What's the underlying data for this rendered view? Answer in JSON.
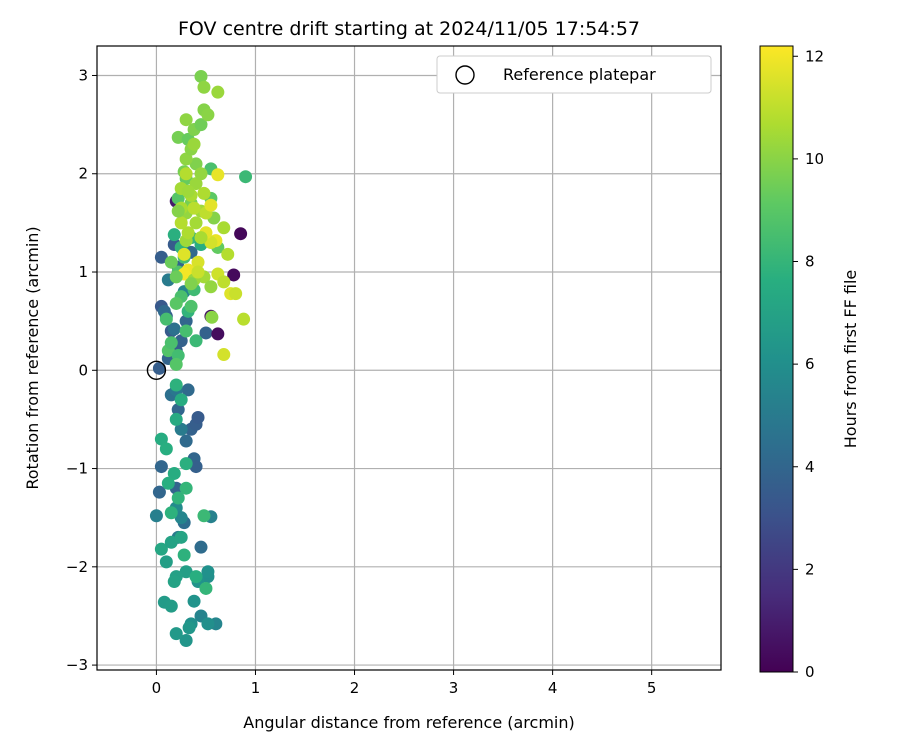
{
  "chart_data": {
    "type": "scatter",
    "title": "FOV centre drift starting at 2024/11/05 17:54:57",
    "xlabel": "Angular distance from reference (arcmin)",
    "ylabel": "Rotation from reference (arcmin)",
    "xlim": [
      -0.6,
      5.7
    ],
    "ylim": [
      -3.05,
      3.3
    ],
    "xticks": [
      0,
      1,
      2,
      3,
      4,
      5
    ],
    "xtick_labels": [
      "0",
      "1",
      "2",
      "3",
      "4",
      "5"
    ],
    "yticks": [
      -3,
      -2,
      -1,
      0,
      1,
      2,
      3
    ],
    "ytick_labels": [
      "−3",
      "−2",
      "−1",
      "0",
      "1",
      "2",
      "3"
    ],
    "grid": true,
    "legend": {
      "placement": "upper right",
      "entries": [
        "Reference platepar"
      ]
    },
    "reference_point": {
      "x": 0,
      "y": 0,
      "label": "Reference platepar"
    },
    "colorbar": {
      "label": "Hours from first FF file",
      "range": [
        0,
        12.2
      ],
      "ticks": [
        0,
        2,
        4,
        6,
        8,
        10,
        12
      ],
      "tick_labels": [
        "0",
        "2",
        "4",
        "6",
        "8",
        "10",
        "12"
      ],
      "colormap": "viridis"
    },
    "series": [
      {
        "name": "FOV centre drift",
        "points": [
          [
            0.03,
            0.02,
            3.6
          ],
          [
            0.05,
            0.65,
            3.4
          ],
          [
            0.1,
            0.55,
            3.7
          ],
          [
            0.15,
            0.4,
            3.5
          ],
          [
            0.2,
            0.2,
            3.6
          ],
          [
            0.25,
            0.3,
            3.8
          ],
          [
            0.3,
            0.5,
            4.0
          ],
          [
            0.12,
            0.12,
            3.9
          ],
          [
            0.05,
            1.15,
            3.6
          ],
          [
            0.18,
            1.28,
            3.5
          ],
          [
            0.22,
            1.05,
            3.9
          ],
          [
            0.35,
            1.2,
            4.2
          ],
          [
            0.5,
            0.38,
            3.8
          ],
          [
            0.55,
            0.55,
            0.6
          ],
          [
            0.62,
            0.37,
            0.4
          ],
          [
            0.78,
            0.97,
            0.3
          ],
          [
            0.85,
            1.39,
            0.2
          ],
          [
            0.2,
            1.72,
            0.9
          ],
          [
            0.28,
            0.8,
            5.5
          ],
          [
            0.32,
            -0.2,
            4.2
          ],
          [
            0.15,
            -0.25,
            4.5
          ],
          [
            0.22,
            -0.4,
            4.0
          ],
          [
            0.35,
            -0.6,
            3.8
          ],
          [
            0.4,
            -0.55,
            3.6
          ],
          [
            0.42,
            -0.48,
            3.5
          ],
          [
            0.3,
            -0.72,
            4.2
          ],
          [
            0.38,
            -0.9,
            4.0
          ],
          [
            0.4,
            -0.98,
            3.7
          ],
          [
            0.05,
            -0.98,
            4.0
          ],
          [
            0.2,
            -1.2,
            3.9
          ],
          [
            0.03,
            -1.24,
            4.0
          ],
          [
            0.2,
            -0.2,
            4.8
          ],
          [
            0.25,
            -0.6,
            5.0
          ],
          [
            0.08,
            0.6,
            4.2
          ],
          [
            0.12,
            0.92,
            5.0
          ],
          [
            0.18,
            0.42,
            4.5
          ],
          [
            0.45,
            -1.8,
            4.3
          ],
          [
            0.28,
            -1.55,
            4.4
          ],
          [
            0.22,
            -1.7,
            5.0
          ],
          [
            0.0,
            -1.48,
            5.2
          ],
          [
            0.2,
            -1.4,
            5.8
          ],
          [
            0.25,
            -1.5,
            5.5
          ],
          [
            0.55,
            -1.49,
            5.3
          ],
          [
            0.45,
            -2.5,
            5.4
          ],
          [
            0.6,
            -2.58,
            5.5
          ],
          [
            0.52,
            -2.58,
            6.0
          ],
          [
            0.35,
            -2.58,
            6.1
          ],
          [
            0.3,
            -2.75,
            6.3
          ],
          [
            0.2,
            -2.68,
            6.5
          ],
          [
            0.33,
            -2.62,
            6.4
          ],
          [
            0.08,
            -2.36,
            6.6
          ],
          [
            0.15,
            -2.4,
            6.7
          ],
          [
            0.38,
            -2.35,
            6.2
          ],
          [
            0.52,
            -2.1,
            6.0
          ],
          [
            0.52,
            -2.05,
            6.1
          ],
          [
            0.42,
            -2.15,
            6.2
          ],
          [
            0.3,
            -2.05,
            6.8
          ],
          [
            0.2,
            -2.1,
            6.9
          ],
          [
            0.18,
            -2.15,
            7.0
          ],
          [
            0.1,
            -1.95,
            6.8
          ],
          [
            0.05,
            -1.82,
            7.2
          ],
          [
            0.15,
            -1.75,
            7.0
          ],
          [
            0.25,
            -1.7,
            7.1
          ],
          [
            0.28,
            -1.88,
            7.8
          ],
          [
            0.05,
            -0.7,
            7.5
          ],
          [
            0.1,
            -0.8,
            7.6
          ],
          [
            0.2,
            -0.5,
            7.4
          ],
          [
            0.25,
            -0.3,
            7.5
          ],
          [
            0.2,
            -0.15,
            7.8
          ],
          [
            0.3,
            -0.95,
            7.7
          ],
          [
            0.18,
            -1.05,
            7.5
          ],
          [
            0.12,
            -1.15,
            7.6
          ],
          [
            0.22,
            -1.3,
            7.9
          ],
          [
            0.15,
            -1.45,
            7.8
          ],
          [
            0.3,
            -1.2,
            8.0
          ],
          [
            0.48,
            -1.48,
            8.2
          ],
          [
            0.5,
            -2.22,
            8.0
          ],
          [
            0.4,
            -2.1,
            7.6
          ],
          [
            0.1,
            0.52,
            8.5
          ],
          [
            0.12,
            0.2,
            8.8
          ],
          [
            0.15,
            0.28,
            8.6
          ],
          [
            0.22,
            0.15,
            8.4
          ],
          [
            0.2,
            0.06,
            8.9
          ],
          [
            0.3,
            0.4,
            8.5
          ],
          [
            0.32,
            0.6,
            7.9
          ],
          [
            0.38,
            0.82,
            8.3
          ],
          [
            0.4,
            0.3,
            8.2
          ],
          [
            0.25,
            0.75,
            8.6
          ],
          [
            0.22,
            1.0,
            8.8
          ],
          [
            0.28,
            1.15,
            8.5
          ],
          [
            0.18,
            1.38,
            7.7
          ],
          [
            0.35,
            1.35,
            8.1
          ],
          [
            0.25,
            1.25,
            7.9
          ],
          [
            0.45,
            1.28,
            7.6
          ],
          [
            0.22,
            2.37,
            9.6
          ],
          [
            0.32,
            2.35,
            9.3
          ],
          [
            0.38,
            2.45,
            9.8
          ],
          [
            0.45,
            2.5,
            9.5
          ],
          [
            0.48,
            2.65,
            9.9
          ],
          [
            0.52,
            2.6,
            10.0
          ],
          [
            0.45,
            2.99,
            9.7
          ],
          [
            0.48,
            2.88,
            10.1
          ],
          [
            0.62,
            2.83,
            10.3
          ],
          [
            0.3,
            2.55,
            10.1
          ],
          [
            0.28,
            2.02,
            9.6
          ],
          [
            0.3,
            1.95,
            9.3
          ],
          [
            0.4,
            2.1,
            9.8
          ],
          [
            0.55,
            2.05,
            8.6
          ],
          [
            0.9,
            1.97,
            8.2
          ],
          [
            0.22,
            1.75,
            8.9
          ],
          [
            0.35,
            1.7,
            9.6
          ],
          [
            0.45,
            1.62,
            10.4
          ],
          [
            0.55,
            1.75,
            9.1
          ],
          [
            0.58,
            1.55,
            9.9
          ],
          [
            0.62,
            1.25,
            9.2
          ],
          [
            0.68,
            1.45,
            10.6
          ],
          [
            0.72,
            1.18,
            10.8
          ],
          [
            0.6,
            1.32,
            11.8
          ],
          [
            0.55,
            1.3,
            11.4
          ],
          [
            0.5,
            1.4,
            11.7
          ],
          [
            0.32,
            1.02,
            11.9
          ],
          [
            0.42,
            1.1,
            11.5
          ],
          [
            0.48,
            0.95,
            10.5
          ],
          [
            0.55,
            0.85,
            10.2
          ],
          [
            0.62,
            0.98,
            11.3
          ],
          [
            0.68,
            0.9,
            11.0
          ],
          [
            0.75,
            0.78,
            11.6
          ],
          [
            0.8,
            0.78,
            11.2
          ],
          [
            0.88,
            0.52,
            10.9
          ],
          [
            0.56,
            0.54,
            10.0
          ],
          [
            0.68,
            0.16,
            11.4
          ],
          [
            0.28,
            1.18,
            11.6
          ],
          [
            0.28,
            0.98,
            12.0
          ],
          [
            0.38,
            0.92,
            10.3
          ],
          [
            0.2,
            0.95,
            9.4
          ],
          [
            0.3,
            1.32,
            10.4
          ],
          [
            0.62,
            1.99,
            11.8
          ],
          [
            0.5,
            1.6,
            11.0
          ],
          [
            0.3,
            1.6,
            10.2
          ],
          [
            0.35,
            1.78,
            10.6
          ],
          [
            0.25,
            1.85,
            10.5
          ],
          [
            0.4,
            1.9,
            10.3
          ],
          [
            0.45,
            2.0,
            10.2
          ],
          [
            0.3,
            2.15,
            10.1
          ],
          [
            0.35,
            2.25,
            10.0
          ],
          [
            0.38,
            2.3,
            10.3
          ],
          [
            0.32,
            1.4,
            10.7
          ],
          [
            0.4,
            1.5,
            10.5
          ],
          [
            0.25,
            1.5,
            10.8
          ],
          [
            0.45,
            1.35,
            10.6
          ],
          [
            0.2,
            0.68,
            9.0
          ],
          [
            0.35,
            0.65,
            8.7
          ],
          [
            0.15,
            1.1,
            9.4
          ],
          [
            0.32,
            1.82,
            10.4
          ],
          [
            0.48,
            1.8,
            10.7
          ],
          [
            0.55,
            1.68,
            11.7
          ],
          [
            0.42,
            1.0,
            11.2
          ],
          [
            0.25,
            1.65,
            10.6
          ],
          [
            0.3,
            2.0,
            10.8
          ],
          [
            0.35,
            0.88,
            9.8
          ],
          [
            0.22,
            1.62,
            9.9
          ],
          [
            0.38,
            1.65,
            10.9
          ]
        ]
      }
    ]
  }
}
